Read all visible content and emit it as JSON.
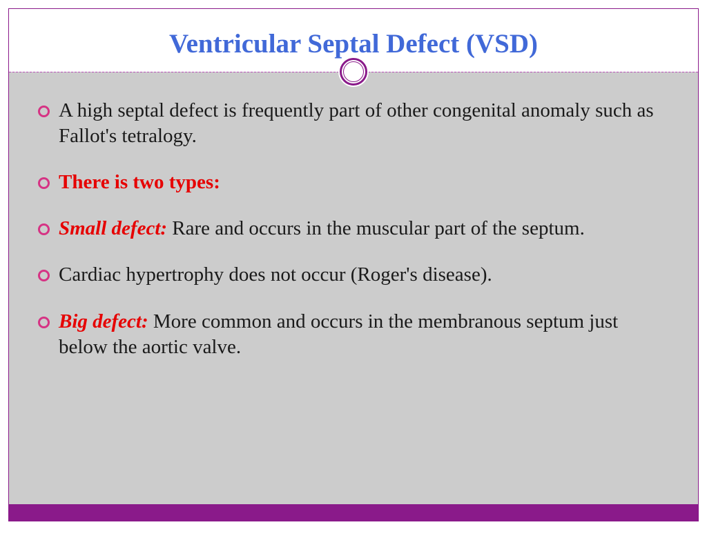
{
  "colors": {
    "border": "#8a1a8a",
    "title": "#4169d8",
    "dash": "#b94eb9",
    "content_bg": "#cccccc",
    "bullet_ring": "#d63384",
    "body_text": "#1a1a1a",
    "emphasis": "#e60000",
    "bottom_bar": "#8a1a8a"
  },
  "typography": {
    "title_fontsize": 39,
    "body_fontsize": 29,
    "font_family": "Georgia, serif"
  },
  "slide": {
    "title": "Ventricular Septal Defect (VSD)",
    "bullets": [
      {
        "prefix": "",
        "prefix_style": "",
        "text": "A high septal defect is frequently part of other congenital anomaly such as Fallot's tetralogy."
      },
      {
        "prefix": "There is two types:",
        "prefix_style": "red-bold",
        "text": ""
      },
      {
        "prefix": "Small defect:",
        "prefix_style": "red-bold-italic",
        "text": " Rare and occurs in the muscular part of the septum."
      },
      {
        "prefix": "",
        "prefix_style": "",
        "text": "Cardiac hypertrophy does not occur (Roger's disease)."
      },
      {
        "prefix": "Big defect:",
        "prefix_style": "red-bold-italic",
        "text": " More common and occurs in the membranous septum just below the aortic valve."
      }
    ]
  }
}
